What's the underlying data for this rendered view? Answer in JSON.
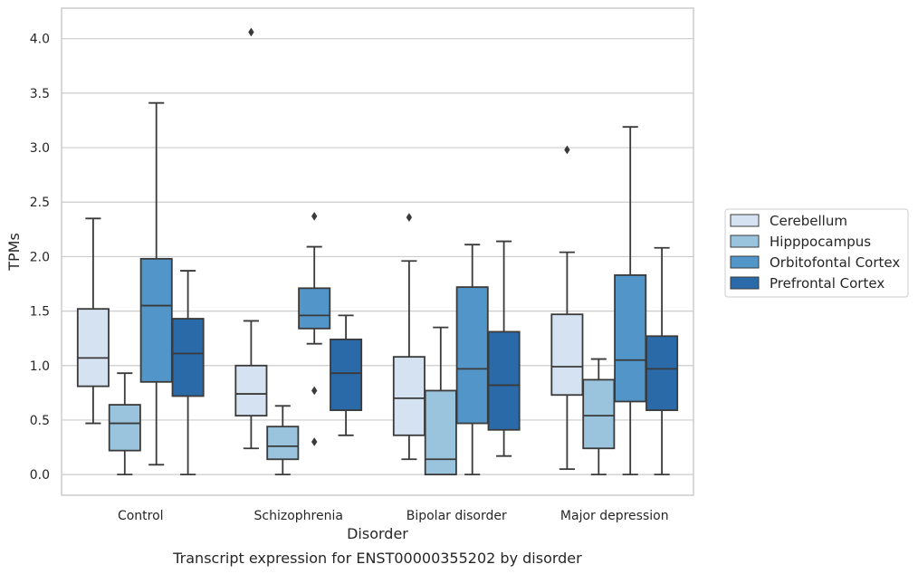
{
  "chart_data": {
    "type": "box",
    "title": "",
    "caption": "Transcript expression for ENST00000355202 by disorder",
    "xlabel": "Disorder",
    "ylabel": "TPMs",
    "ylim": [
      -0.19,
      4.28
    ],
    "yticks": [
      0.0,
      0.5,
      1.0,
      1.5,
      2.0,
      2.5,
      3.0,
      3.5,
      4.0
    ],
    "ytick_labels": [
      "0.0",
      "0.5",
      "1.0",
      "1.5",
      "2.0",
      "2.5",
      "3.0",
      "3.5",
      "4.0"
    ],
    "grid": true,
    "legend_position": "right",
    "categories": [
      "Control",
      "Schizophrenia",
      "Bipolar disorder",
      "Major depression"
    ],
    "series": [
      {
        "name": "Cerebellum",
        "color": "#d4e2f1",
        "boxes": [
          {
            "whislo": 0.47,
            "q1": 0.81,
            "med": 1.07,
            "q3": 1.52,
            "whishi": 2.35,
            "fliers": []
          },
          {
            "whislo": 0.24,
            "q1": 0.54,
            "med": 0.74,
            "q3": 1.0,
            "whishi": 1.41,
            "fliers": [
              4.06
            ]
          },
          {
            "whislo": 0.14,
            "q1": 0.36,
            "med": 0.7,
            "q3": 1.08,
            "whishi": 1.96,
            "fliers": [
              2.36
            ]
          },
          {
            "whislo": 0.05,
            "q1": 0.73,
            "med": 0.99,
            "q3": 1.47,
            "whishi": 2.04,
            "fliers": [
              2.98
            ]
          }
        ]
      },
      {
        "name": "Hipppocampus",
        "color": "#9ac4de",
        "boxes": [
          {
            "whislo": 0.0,
            "q1": 0.22,
            "med": 0.47,
            "q3": 0.64,
            "whishi": 0.93,
            "fliers": []
          },
          {
            "whislo": 0.0,
            "q1": 0.14,
            "med": 0.26,
            "q3": 0.44,
            "whishi": 0.63,
            "fliers": []
          },
          {
            "whislo": 0.0,
            "q1": 0.0,
            "med": 0.14,
            "q3": 0.77,
            "whishi": 1.35,
            "fliers": []
          },
          {
            "whislo": 0.0,
            "q1": 0.24,
            "med": 0.54,
            "q3": 0.87,
            "whishi": 1.06,
            "fliers": []
          }
        ]
      },
      {
        "name": "Orbitofontal Cortex",
        "color": "#5295c8",
        "boxes": [
          {
            "whislo": 0.09,
            "q1": 0.85,
            "med": 1.55,
            "q3": 1.98,
            "whishi": 3.41,
            "fliers": []
          },
          {
            "whislo": 1.2,
            "q1": 1.34,
            "med": 1.46,
            "q3": 1.71,
            "whishi": 2.09,
            "fliers": [
              2.37,
              0.77,
              0.3
            ]
          },
          {
            "whislo": 0.0,
            "q1": 0.47,
            "med": 0.97,
            "q3": 1.72,
            "whishi": 2.11,
            "fliers": []
          },
          {
            "whislo": 0.0,
            "q1": 0.67,
            "med": 1.05,
            "q3": 1.83,
            "whishi": 3.19,
            "fliers": []
          }
        ]
      },
      {
        "name": "Prefrontal Cortex",
        "color": "#2b6aa8",
        "boxes": [
          {
            "whislo": 0.0,
            "q1": 0.72,
            "med": 1.11,
            "q3": 1.43,
            "whishi": 1.87,
            "fliers": []
          },
          {
            "whislo": 0.36,
            "q1": 0.59,
            "med": 0.93,
            "q3": 1.24,
            "whishi": 1.46,
            "fliers": []
          },
          {
            "whislo": 0.17,
            "q1": 0.41,
            "med": 0.82,
            "q3": 1.31,
            "whishi": 2.14,
            "fliers": []
          },
          {
            "whislo": 0.0,
            "q1": 0.59,
            "med": 0.97,
            "q3": 1.27,
            "whishi": 2.08,
            "fliers": []
          }
        ]
      }
    ]
  },
  "style": {
    "grid_color": "#cccccc",
    "frame_color": "#cccccc",
    "box_edge_color": "#3a3a3a"
  }
}
